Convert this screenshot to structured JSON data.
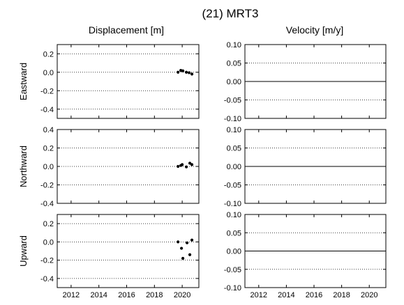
{
  "chart_data": {
    "type": "scatter",
    "title": "(21) MRT3",
    "column_titles": [
      "Displacement [m]",
      "Velocity [m/y]"
    ],
    "row_titles": [
      "Eastward",
      "Northward",
      "Upward"
    ],
    "x_ticks": [
      "2012",
      "2014",
      "2016",
      "2018",
      "2020"
    ],
    "xlim": [
      2011,
      2021.2
    ],
    "panels": [
      {
        "row": "Eastward",
        "column": "Displacement [m]",
        "ylim": [
          -0.5,
          0.3
        ],
        "y_ticks": [
          "0.2",
          "0.0",
          "-0.2",
          "-0.4"
        ],
        "y_tick_values": [
          0.2,
          0.0,
          -0.2,
          -0.4
        ],
        "grid": [
          0.2,
          -0.2,
          -0.4
        ],
        "x": [
          2019.7,
          2019.9,
          2020.05,
          2020.3,
          2020.5,
          2020.7
        ],
        "y": [
          0.0,
          0.02,
          0.015,
          0.0,
          -0.005,
          -0.02
        ]
      },
      {
        "row": "Eastward",
        "column": "Velocity [m/y]",
        "ylim": [
          -0.1,
          0.1
        ],
        "y_ticks": [
          "0.10",
          "0.05",
          "0.00",
          "-0.05",
          "-0.10"
        ],
        "y_tick_values": [
          0.1,
          0.05,
          0.0,
          -0.05,
          -0.1
        ],
        "grid": [
          0.05,
          -0.05
        ],
        "x": [],
        "y": []
      },
      {
        "row": "Northward",
        "column": "Displacement [m]",
        "ylim": [
          -0.4,
          0.4
        ],
        "y_ticks": [
          "0.4",
          "0.2",
          "0.0",
          "-0.2",
          "-0.4"
        ],
        "y_tick_values": [
          0.4,
          0.2,
          0.0,
          -0.2,
          -0.4
        ],
        "grid": [
          0.2,
          -0.2
        ],
        "x": [
          2019.7,
          2019.9,
          2020.0,
          2020.3,
          2020.55,
          2020.7
        ],
        "y": [
          0.0,
          0.01,
          0.02,
          -0.005,
          0.035,
          0.02
        ]
      },
      {
        "row": "Northward",
        "column": "Velocity [m/y]",
        "ylim": [
          -0.1,
          0.1
        ],
        "y_ticks": [
          "0.10",
          "0.05",
          "0.00",
          "-0.05",
          "-0.10"
        ],
        "y_tick_values": [
          0.1,
          0.05,
          0.0,
          -0.05,
          -0.1
        ],
        "grid": [
          0.05,
          -0.05
        ],
        "x": [],
        "y": []
      },
      {
        "row": "Upward",
        "column": "Displacement [m]",
        "ylim": [
          -0.5,
          0.3
        ],
        "y_ticks": [
          "0.2",
          "0.0",
          "-0.2",
          "-0.4"
        ],
        "y_tick_values": [
          0.2,
          0.0,
          -0.2,
          -0.4
        ],
        "grid": [
          0.2,
          -0.2,
          -0.4
        ],
        "x": [
          2019.7,
          2019.95,
          2020.05,
          2020.35,
          2020.55,
          2020.7
        ],
        "y": [
          0.0,
          -0.07,
          -0.18,
          -0.01,
          -0.14,
          0.02
        ]
      },
      {
        "row": "Upward",
        "column": "Velocity [m/y]",
        "ylim": [
          -0.1,
          0.1
        ],
        "y_ticks": [
          "0.10",
          "0.05",
          "0.00",
          "-0.05",
          "-0.10"
        ],
        "y_tick_values": [
          0.1,
          0.05,
          0.0,
          -0.05,
          -0.1
        ],
        "grid": [
          0.05,
          -0.05
        ],
        "x": [],
        "y": []
      }
    ]
  }
}
